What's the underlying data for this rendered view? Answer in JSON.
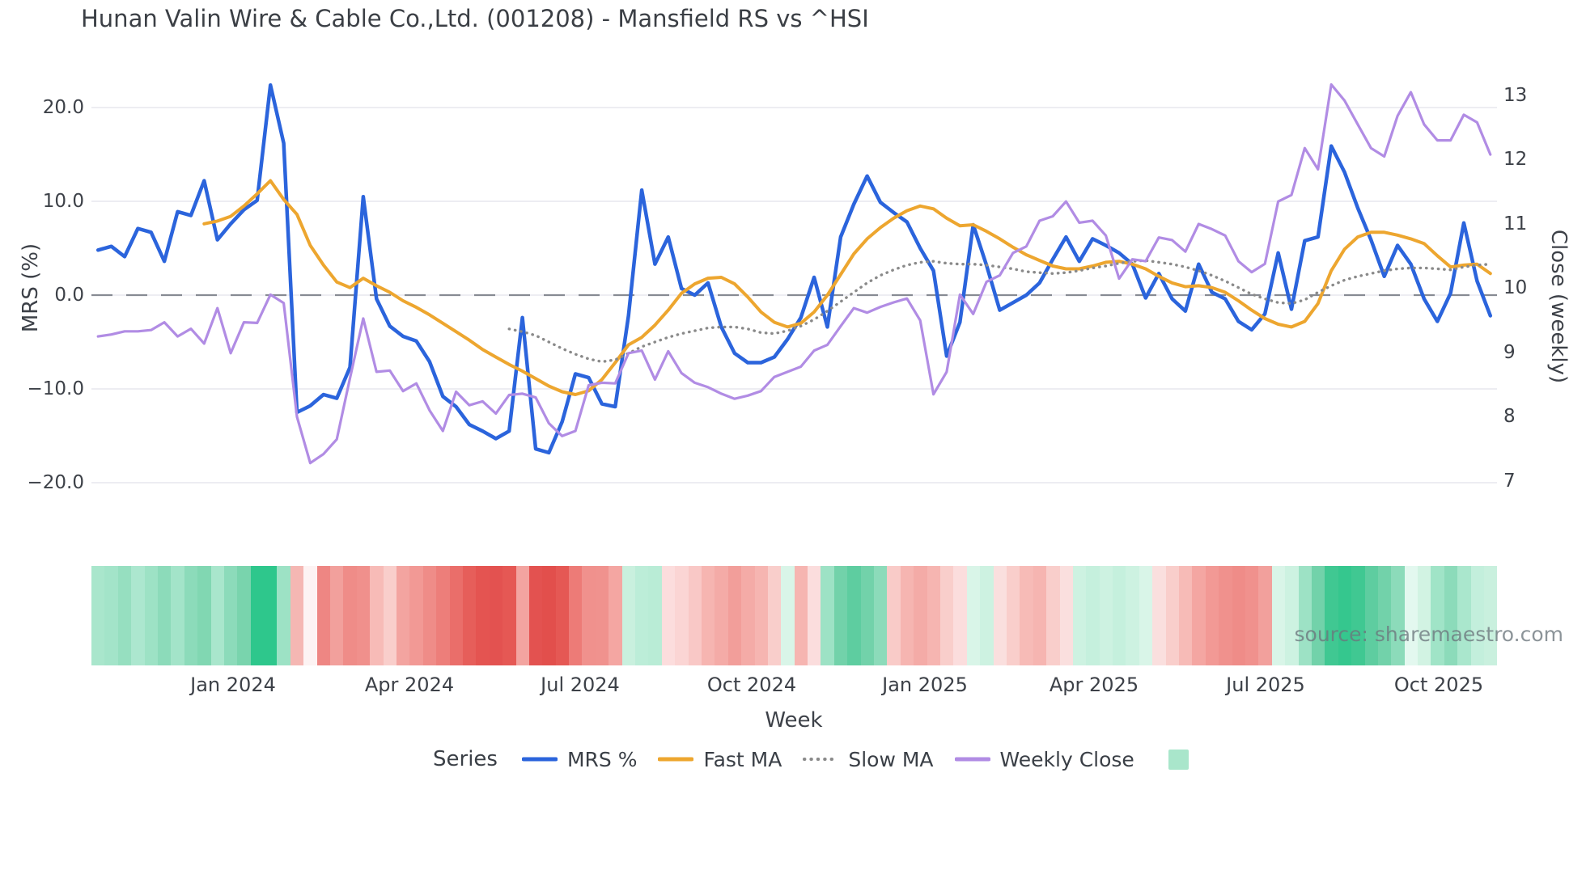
{
  "title": "Hunan Valin Wire & Cable Co.,Ltd. (001208) - Mansfield RS vs ^HSI",
  "watermark": "source: sharemaestro.com",
  "axes": {
    "left": {
      "label": "MRS (%)",
      "ticks": [
        "20.0",
        "10.0",
        "0.0",
        "−10.0",
        "−20.0"
      ],
      "tick_values": [
        20,
        10,
        0,
        -10,
        -20
      ]
    },
    "right": {
      "label": "Close (weekly)",
      "ticks": [
        "13",
        "12",
        "11",
        "10",
        "9",
        "8",
        "7"
      ],
      "tick_values": [
        13,
        12,
        11,
        10,
        9,
        8,
        7
      ]
    },
    "x": {
      "label": "Week"
    }
  },
  "legend": {
    "title": "Series",
    "items": [
      {
        "label": "MRS %",
        "color": "#2b64dc",
        "style": "solid"
      },
      {
        "label": "Fast MA",
        "color": "#eda62f",
        "style": "solid"
      },
      {
        "label": "Slow MA",
        "color": "#8a8a8a",
        "style": "dotted"
      },
      {
        "label": "Weekly Close",
        "color": "#b18ce4",
        "style": "solid"
      }
    ],
    "heatmap_swatch_color": "#a9e6cb"
  },
  "chart_data": {
    "type": "line",
    "title": "Hunan Valin Wire & Cable Co.,Ltd. (001208) - Mansfield RS vs ^HSI",
    "xlabel": "Week",
    "ylabel_left": "MRS (%)",
    "ylabel_right": "Close (weekly)",
    "n_weeks": 106,
    "left_ylim": [
      -24,
      24.5
    ],
    "right_ylim": [
      6.6,
      13.5
    ],
    "grid": "horizontal-light",
    "zero_line": {
      "axis": "left",
      "value": 0,
      "style": "long-dash",
      "color": "#878b93"
    },
    "x_tick_labels": [
      "Jan 2024",
      "Apr 2024",
      "Jul 2024",
      "Oct 2024",
      "Jan 2025",
      "Apr 2025",
      "Jul 2025",
      "Oct 2025"
    ],
    "x_tick_week_index": [
      10.2,
      23.5,
      36.4,
      49.4,
      62.4,
      75.2,
      88.2,
      101.2
    ],
    "series": [
      {
        "name": "MRS %",
        "axis": "left",
        "color": "#2b64dc",
        "style": "solid",
        "width": 4.5,
        "start_week": 0,
        "values": [
          4.8,
          5.2,
          4.1,
          7.1,
          6.7,
          3.6,
          8.9,
          8.5,
          12.2,
          5.9,
          7.6,
          9.1,
          10.1,
          22.4,
          16.2,
          -12.5,
          -11.8,
          -10.6,
          -11.0,
          -7.7,
          10.5,
          -0.4,
          -3.3,
          -4.4,
          -4.9,
          -7.1,
          -10.8,
          -11.9,
          -13.8,
          -14.5,
          -15.3,
          -14.5,
          -2.4,
          -16.4,
          -16.8,
          -13.5,
          -8.4,
          -8.8,
          -11.6,
          -11.9,
          -2.2,
          11.2,
          3.3,
          6.2,
          0.7,
          0.0,
          1.3,
          -3.4,
          -6.2,
          -7.2,
          -7.2,
          -6.6,
          -4.7,
          -2.4,
          1.9,
          -3.4,
          6.2,
          9.7,
          12.7,
          9.9,
          8.8,
          7.8,
          5.0,
          2.6,
          -6.5,
          -2.9,
          7.5,
          3.2,
          -1.6,
          -0.8,
          0.0,
          1.3,
          3.8,
          6.2,
          3.6,
          6.0,
          5.3,
          4.5,
          3.3,
          -0.3,
          2.3,
          -0.4,
          -1.7,
          3.3,
          0.3,
          -0.4,
          -2.8,
          -3.7,
          -2.0,
          4.5,
          -1.5,
          5.8,
          6.2,
          15.9,
          13.1,
          9.3,
          5.9,
          2.0,
          5.3,
          3.3,
          -0.4,
          -2.8,
          0.2,
          7.7,
          1.5,
          -2.2
        ]
      },
      {
        "name": "Fast MA",
        "axis": "left",
        "color": "#eda62f",
        "style": "solid",
        "width": 4,
        "start_week": 8,
        "values": [
          7.6,
          7.9,
          8.4,
          9.5,
          10.8,
          12.2,
          10.2,
          8.6,
          5.3,
          3.2,
          1.4,
          0.8,
          1.8,
          1.0,
          0.3,
          -0.6,
          -1.3,
          -2.1,
          -3.0,
          -3.9,
          -4.8,
          -5.8,
          -6.6,
          -7.4,
          -8.1,
          -8.9,
          -9.7,
          -10.3,
          -10.6,
          -10.2,
          -9.0,
          -7.2,
          -5.3,
          -4.5,
          -3.2,
          -1.6,
          0.2,
          1.2,
          1.8,
          1.9,
          1.2,
          -0.2,
          -1.8,
          -2.9,
          -3.4,
          -3.0,
          -1.8,
          0.0,
          2.2,
          4.4,
          6.0,
          7.2,
          8.2,
          9.0,
          9.5,
          9.2,
          8.2,
          7.4,
          7.5,
          6.8,
          6.0,
          5.1,
          4.3,
          3.7,
          3.1,
          2.8,
          2.8,
          3.1,
          3.5,
          3.6,
          3.3,
          2.8,
          2.0,
          1.3,
          0.9,
          1.0,
          0.8,
          0.3,
          -0.6,
          -1.6,
          -2.5,
          -3.1,
          -3.4,
          -2.8,
          -0.9,
          2.6,
          4.9,
          6.2,
          6.7,
          6.7,
          6.4,
          6.0,
          5.5,
          4.2,
          3.0,
          3.2,
          3.3,
          2.3
        ]
      },
      {
        "name": "Slow MA",
        "axis": "left",
        "color": "#8a8a8a",
        "style": "dotted",
        "width": 3.4,
        "start_week": 31,
        "values": [
          -3.6,
          -3.9,
          -4.3,
          -5.0,
          -5.7,
          -6.3,
          -6.8,
          -7.1,
          -6.9,
          -6.2,
          -5.5,
          -5.0,
          -4.5,
          -4.1,
          -3.8,
          -3.5,
          -3.4,
          -3.4,
          -3.6,
          -4.0,
          -4.1,
          -3.8,
          -3.3,
          -2.6,
          -1.7,
          -0.7,
          0.3,
          1.3,
          2.1,
          2.7,
          3.2,
          3.5,
          3.6,
          3.4,
          3.3,
          3.3,
          3.2,
          3.0,
          2.8,
          2.5,
          2.4,
          2.3,
          2.4,
          2.6,
          2.9,
          3.1,
          3.4,
          3.6,
          3.7,
          3.5,
          3.3,
          3.0,
          2.6,
          2.1,
          1.5,
          0.8,
          0.1,
          -0.4,
          -0.8,
          -0.9,
          -0.5,
          0.3,
          1.0,
          1.6,
          2.0,
          2.3,
          2.6,
          2.8,
          2.9,
          2.9,
          2.8,
          2.7,
          3.0,
          3.2,
          3.3
        ]
      },
      {
        "name": "Weekly Close",
        "axis": "right",
        "color": "#b18ce4",
        "style": "solid",
        "width": 3.2,
        "start_week": 0,
        "values": [
          9.25,
          9.28,
          9.33,
          9.33,
          9.35,
          9.47,
          9.25,
          9.37,
          9.14,
          9.69,
          8.99,
          9.47,
          9.46,
          9.9,
          9.77,
          8.0,
          7.28,
          7.42,
          7.65,
          8.6,
          9.53,
          8.7,
          8.72,
          8.4,
          8.52,
          8.1,
          7.78,
          8.39,
          8.18,
          8.24,
          8.05,
          8.34,
          8.36,
          8.3,
          7.9,
          7.7,
          7.78,
          8.49,
          8.53,
          8.52,
          8.99,
          9.03,
          8.58,
          9.02,
          8.68,
          8.53,
          8.46,
          8.36,
          8.28,
          8.33,
          8.4,
          8.62,
          8.7,
          8.78,
          9.03,
          9.12,
          9.41,
          9.69,
          9.62,
          9.71,
          9.78,
          9.84,
          9.5,
          8.35,
          8.7,
          9.9,
          9.6,
          10.1,
          10.2,
          10.55,
          10.65,
          11.05,
          11.12,
          11.35,
          11.02,
          11.05,
          10.82,
          10.15,
          10.45,
          10.42,
          10.79,
          10.75,
          10.57,
          11.0,
          10.92,
          10.82,
          10.42,
          10.25,
          10.38,
          11.35,
          11.45,
          12.18,
          11.85,
          13.17,
          12.92,
          12.55,
          12.18,
          12.05,
          12.68,
          13.05,
          12.55,
          12.3,
          12.3,
          12.7,
          12.58,
          12.08
        ]
      }
    ],
    "heatmap": {
      "description": "weekly relative-strength heat strip",
      "colors": [
        "#a9e6cc",
        "#a3e4c9",
        "#96dfc0",
        "#ace7cf",
        "#9de2c5",
        "#8cdbba",
        "#a3e4c9",
        "#8cdbba",
        "#81d7b2",
        "#a9e6cc",
        "#8cdbba",
        "#79d4ad",
        "#2ec78c",
        "#2ec78c",
        "#9de2c5",
        "#f5b7b3",
        "#fdf3f3",
        "#ee8683",
        "#f2a09c",
        "#ef8c88",
        "#f0908c",
        "#f7bbb7",
        "#f9cecb",
        "#f3a4a0",
        "#f29995",
        "#ef8c88",
        "#ed7e7a",
        "#ea6e6a",
        "#e65e5a",
        "#e45451",
        "#e35250",
        "#e55854",
        "#f3a4a0",
        "#e35250",
        "#e24f4c",
        "#e55854",
        "#ed7b77",
        "#f0918d",
        "#f0928e",
        "#f4a6a2",
        "#c9f0de",
        "#bcedd8",
        "#b9ecd6",
        "#fcdddd",
        "#fbd5d4",
        "#f9c8c6",
        "#f6b5b1",
        "#f4aba7",
        "#f29e9a",
        "#f4aba7",
        "#f6b5b1",
        "#f9cecb",
        "#d9f5e8",
        "#f6b5b1",
        "#fbdddd",
        "#9de2c5",
        "#72d2aa",
        "#5ecda0",
        "#72d2aa",
        "#8cdbba",
        "#f9cbc8",
        "#f6b5b1",
        "#f4aba7",
        "#f6b5b1",
        "#f9cecb",
        "#fbdddd",
        "#d9f5e8",
        "#cdf2e1",
        "#fadfde",
        "#f9cecb",
        "#f7bbb7",
        "#f6b5b1",
        "#f9cecb",
        "#fadfde",
        "#cdf2e1",
        "#c5f0dd",
        "#cdf2e1",
        "#c5f0dd",
        "#cdf2e1",
        "#d9f5e8",
        "#fadfde",
        "#f9cecb",
        "#f7bbb7",
        "#f4a6a2",
        "#f29995",
        "#f0918d",
        "#ef8c88",
        "#f0918d",
        "#f2a09c",
        "#d9f5e8",
        "#cdf2e1",
        "#9de2c5",
        "#72d2aa",
        "#40c892",
        "#35c78e",
        "#40c892",
        "#5ecda0",
        "#72d2aa",
        "#8cdbba",
        "#e3f8ef",
        "#d2f3e3",
        "#a0e4c7",
        "#8cdbba",
        "#aae7cd",
        "#c3efdc",
        "#c9f0de"
      ]
    }
  }
}
